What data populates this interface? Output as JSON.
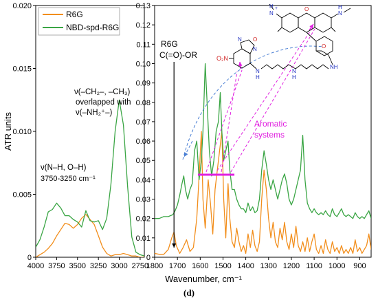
{
  "caption": "(d)",
  "chart_data": [
    {
      "type": "line",
      "panel": "left",
      "ylabel": "ATR units",
      "xlim": [
        4000,
        2700
      ],
      "xticks": [
        4000,
        3750,
        3500,
        3250,
        3000,
        2750
      ],
      "ylim": [
        0,
        0.02
      ],
      "yticks": [
        "0",
        "0.005",
        "0.010",
        "0.015",
        "0.020"
      ],
      "yticks_values": [
        0,
        0.005,
        0.01,
        0.015,
        0.02
      ],
      "legend": [
        "R6G",
        "NBD-spd-R6G"
      ],
      "legend_position": "top-left",
      "annotations": {
        "stretch_line1": "ν(–CH₂–, –CH₃)",
        "stretch_line2": "overlapped with",
        "stretch_line3": "ν(–NH₂⁺–)",
        "nh_oh_line1": "ν(N–H, O–H)",
        "nh_oh_line2": "3750-3250 cm⁻¹"
      },
      "series": [
        {
          "name": "R6G",
          "color": "#f28e1c",
          "points": [
            [
              4000,
              0.0
            ],
            [
              3950,
              0.0002
            ],
            [
              3900,
              0.0004
            ],
            [
              3850,
              0.0007
            ],
            [
              3800,
              0.0011
            ],
            [
              3750,
              0.0017
            ],
            [
              3700,
              0.0022
            ],
            [
              3650,
              0.0027
            ],
            [
              3600,
              0.0026
            ],
            [
              3550,
              0.0023
            ],
            [
              3500,
              0.0026
            ],
            [
              3450,
              0.0031
            ],
            [
              3400,
              0.0034
            ],
            [
              3350,
              0.003
            ],
            [
              3300,
              0.0026
            ],
            [
              3250,
              0.0017
            ],
            [
              3200,
              0.0008
            ],
            [
              3150,
              0.0003
            ],
            [
              3100,
              0.0001
            ],
            [
              3050,
              0.0002
            ],
            [
              3000,
              0.0002
            ],
            [
              2950,
              0.0003
            ],
            [
              2900,
              0.0002
            ],
            [
              2850,
              0.0001
            ],
            [
              2800,
              0.0001
            ],
            [
              2750,
              0.0
            ],
            [
              2700,
              0.0
            ]
          ]
        },
        {
          "name": "NBD-spd-R6G",
          "color": "#3aa544",
          "points": [
            [
              4000,
              0.0008
            ],
            [
              3950,
              0.0014
            ],
            [
              3900,
              0.0024
            ],
            [
              3850,
              0.0036
            ],
            [
              3800,
              0.0038
            ],
            [
              3750,
              0.0043
            ],
            [
              3700,
              0.0039
            ],
            [
              3650,
              0.0033
            ],
            [
              3600,
              0.0033
            ],
            [
              3550,
              0.003
            ],
            [
              3500,
              0.0028
            ],
            [
              3450,
              0.0024
            ],
            [
              3400,
              0.0037
            ],
            [
              3350,
              0.0029
            ],
            [
              3300,
              0.0028
            ],
            [
              3250,
              0.0029
            ],
            [
              3200,
              0.0022
            ],
            [
              3150,
              0.0031
            ],
            [
              3100,
              0.0058
            ],
            [
              3050,
              0.01
            ],
            [
              3000,
              0.0125
            ],
            [
              2950,
              0.0105
            ],
            [
              2900,
              0.0056
            ],
            [
              2850,
              0.0016
            ],
            [
              2800,
              0.0004
            ],
            [
              2750,
              0.0002
            ],
            [
              2700,
              0.0001
            ]
          ]
        }
      ]
    },
    {
      "type": "line",
      "panel": "right",
      "xlabel": "Wavenumber, cm⁻¹",
      "xlim": [
        1800,
        850
      ],
      "xticks": [
        1800,
        1700,
        1600,
        1500,
        1400,
        1300,
        1200,
        1100,
        1000,
        900
      ],
      "ylim": [
        0,
        0.13
      ],
      "yticks": [
        "0",
        "0.01",
        "0.02",
        "0.03",
        "0.04",
        "0.05",
        "0.06",
        "0.07",
        "0.08",
        "0.09",
        "0.10",
        "0.11",
        "0.12",
        "0.13"
      ],
      "yticks_values": [
        0,
        0.01,
        0.02,
        0.03,
        0.04,
        0.05,
        0.06,
        0.07,
        0.08,
        0.09,
        0.1,
        0.11,
        0.12,
        0.13
      ],
      "annotations": {
        "r6g_line1": "R6G",
        "r6g_line2": "C(=O)-OR",
        "arrow_target_wavenumber": 1715,
        "aromatic_line1": "Aromatic",
        "aromatic_line2": "systems",
        "aromatic_bracket_range": [
          1610,
          1450
        ],
        "structure_labels": {
          "nitro": "O₂N",
          "n_top": "N",
          "o_ring": "O",
          "n_bottom": "N",
          "nh_left": "N",
          "nh_left_h": "H",
          "nh_mid": "N",
          "nh_mid_h": "H",
          "nh_right": "NH",
          "n_plus": "N",
          "n_plus_h": "H",
          "plus": "+",
          "n_right": "N",
          "n_right_h": "H",
          "o_xanthene": "O",
          "o_carbonyl": "O"
        }
      },
      "series": [
        {
          "name": "R6G",
          "color": "#f28e1c",
          "points": [
            [
              1800,
              0.002
            ],
            [
              1780,
              0.0015
            ],
            [
              1760,
              0.0015
            ],
            [
              1740,
              0.004
            ],
            [
              1725,
              0.01
            ],
            [
              1715,
              0.013
            ],
            [
              1705,
              0.006
            ],
            [
              1690,
              0.002
            ],
            [
              1675,
              0.005
            ],
            [
              1660,
              0.009
            ],
            [
              1645,
              0.003
            ],
            [
              1630,
              0.005
            ],
            [
              1615,
              0.02
            ],
            [
              1605,
              0.042
            ],
            [
              1595,
              0.065
            ],
            [
              1588,
              0.03
            ],
            [
              1578,
              0.015
            ],
            [
              1565,
              0.04
            ],
            [
              1555,
              0.028
            ],
            [
              1545,
              0.012
            ],
            [
              1535,
              0.035
            ],
            [
              1525,
              0.045
            ],
            [
              1515,
              0.055
            ],
            [
              1505,
              0.065
            ],
            [
              1497,
              0.03
            ],
            [
              1488,
              0.01
            ],
            [
              1478,
              0.038
            ],
            [
              1470,
              0.02
            ],
            [
              1460,
              0.008
            ],
            [
              1450,
              0.005
            ],
            [
              1440,
              0.015
            ],
            [
              1430,
              0.008
            ],
            [
              1420,
              0.003
            ],
            [
              1410,
              0.006
            ],
            [
              1400,
              0.002
            ],
            [
              1390,
              0.012
            ],
            [
              1380,
              0.005
            ],
            [
              1370,
              0.014
            ],
            [
              1360,
              0.006
            ],
            [
              1350,
              0.003
            ],
            [
              1340,
              0.008
            ],
            [
              1330,
              0.03
            ],
            [
              1320,
              0.045
            ],
            [
              1310,
              0.035
            ],
            [
              1300,
              0.02
            ],
            [
              1290,
              0.01
            ],
            [
              1280,
              0.018
            ],
            [
              1270,
              0.008
            ],
            [
              1260,
              0.005
            ],
            [
              1250,
              0.015
            ],
            [
              1240,
              0.009
            ],
            [
              1230,
              0.018
            ],
            [
              1220,
              0.008
            ],
            [
              1210,
              0.004
            ],
            [
              1200,
              0.012
            ],
            [
              1190,
              0.005
            ],
            [
              1180,
              0.016
            ],
            [
              1170,
              0.006
            ],
            [
              1160,
              0.003
            ],
            [
              1150,
              0.008
            ],
            [
              1140,
              0.003
            ],
            [
              1130,
              0.01
            ],
            [
              1120,
              0.003
            ],
            [
              1110,
              0.008
            ],
            [
              1100,
              0.012
            ],
            [
              1090,
              0.004
            ],
            [
              1080,
              0.002
            ],
            [
              1070,
              0.006
            ],
            [
              1060,
              0.002
            ],
            [
              1050,
              0.009
            ],
            [
              1040,
              0.004
            ],
            [
              1030,
              0.002
            ],
            [
              1020,
              0.008
            ],
            [
              1010,
              0.003
            ],
            [
              1000,
              0.005
            ],
            [
              990,
              0.002
            ],
            [
              980,
              0.006
            ],
            [
              970,
              0.002
            ],
            [
              960,
              0.004
            ],
            [
              950,
              0.002
            ],
            [
              940,
              0.005
            ],
            [
              930,
              0.002
            ],
            [
              920,
              0.009
            ],
            [
              910,
              0.003
            ],
            [
              900,
              0.005
            ],
            [
              890,
              0.002
            ],
            [
              880,
              0.004
            ],
            [
              870,
              0.006
            ],
            [
              860,
              0.012
            ],
            [
              850,
              0.004
            ]
          ]
        },
        {
          "name": "NBD-spd-R6G",
          "color": "#3aa544",
          "points": [
            [
              1800,
              0.02
            ],
            [
              1780,
              0.02
            ],
            [
              1760,
              0.021
            ],
            [
              1740,
              0.021
            ],
            [
              1720,
              0.022
            ],
            [
              1710,
              0.024
            ],
            [
              1700,
              0.027
            ],
            [
              1690,
              0.032
            ],
            [
              1680,
              0.038
            ],
            [
              1672,
              0.042
            ],
            [
              1665,
              0.035
            ],
            [
              1655,
              0.03
            ],
            [
              1645,
              0.035
            ],
            [
              1635,
              0.038
            ],
            [
              1625,
              0.055
            ],
            [
              1615,
              0.06
            ],
            [
              1605,
              0.04
            ],
            [
              1595,
              0.05
            ],
            [
              1588,
              0.065
            ],
            [
              1578,
              0.1
            ],
            [
              1570,
              0.08
            ],
            [
              1560,
              0.055
            ],
            [
              1550,
              0.042
            ],
            [
              1540,
              0.05
            ],
            [
              1530,
              0.065
            ],
            [
              1520,
              0.07
            ],
            [
              1512,
              0.085
            ],
            [
              1505,
              0.065
            ],
            [
              1497,
              0.05
            ],
            [
              1488,
              0.055
            ],
            [
              1478,
              0.06
            ],
            [
              1470,
              0.045
            ],
            [
              1460,
              0.035
            ],
            [
              1450,
              0.035
            ],
            [
              1440,
              0.03
            ],
            [
              1430,
              0.027
            ],
            [
              1420,
              0.025
            ],
            [
              1410,
              0.025
            ],
            [
              1400,
              0.023
            ],
            [
              1390,
              0.028
            ],
            [
              1380,
              0.024
            ],
            [
              1370,
              0.026
            ],
            [
              1360,
              0.023
            ],
            [
              1350,
              0.024
            ],
            [
              1340,
              0.03
            ],
            [
              1330,
              0.045
            ],
            [
              1320,
              0.055
            ],
            [
              1310,
              0.048
            ],
            [
              1300,
              0.04
            ],
            [
              1290,
              0.035
            ],
            [
              1280,
              0.04
            ],
            [
              1270,
              0.035
            ],
            [
              1260,
              0.03
            ],
            [
              1250,
              0.035
            ],
            [
              1240,
              0.04
            ],
            [
              1230,
              0.043
            ],
            [
              1220,
              0.038
            ],
            [
              1210,
              0.03
            ],
            [
              1200,
              0.027
            ],
            [
              1190,
              0.03
            ],
            [
              1180,
              0.035
            ],
            [
              1170,
              0.04
            ],
            [
              1160,
              0.045
            ],
            [
              1150,
              0.063
            ],
            [
              1140,
              0.04
            ],
            [
              1130,
              0.028
            ],
            [
              1120,
              0.025
            ],
            [
              1110,
              0.023
            ],
            [
              1100,
              0.025
            ],
            [
              1090,
              0.023
            ],
            [
              1080,
              0.022
            ],
            [
              1070,
              0.023
            ],
            [
              1060,
              0.022
            ],
            [
              1050,
              0.024
            ],
            [
              1040,
              0.022
            ],
            [
              1030,
              0.021
            ],
            [
              1020,
              0.025
            ],
            [
              1010,
              0.022
            ],
            [
              1000,
              0.021
            ],
            [
              990,
              0.023
            ],
            [
              980,
              0.025
            ],
            [
              970,
              0.022
            ],
            [
              960,
              0.021
            ],
            [
              950,
              0.022
            ],
            [
              940,
              0.021
            ],
            [
              930,
              0.02
            ],
            [
              920,
              0.023
            ],
            [
              910,
              0.021
            ],
            [
              900,
              0.02
            ],
            [
              890,
              0.021
            ],
            [
              880,
              0.02
            ],
            [
              870,
              0.022
            ],
            [
              860,
              0.024
            ],
            [
              850,
              0.02
            ]
          ]
        }
      ]
    }
  ]
}
